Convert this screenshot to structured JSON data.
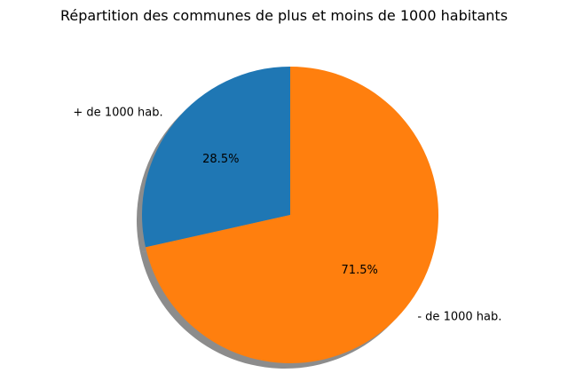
{
  "chart_data": {
    "type": "pie",
    "title": "Répartition des communes de plus et moins de 1000 habitants",
    "start_angle_deg": 90,
    "direction": "counterclockwise",
    "shadow": true,
    "slices": [
      {
        "label": "+ de 1000 hab.",
        "value": 28.5,
        "pct_label": "28.5%",
        "color": "#1f77b4"
      },
      {
        "label": "- de 1000 hab.",
        "value": 71.5,
        "pct_label": "71.5%",
        "color": "#ff7f0e"
      }
    ]
  }
}
